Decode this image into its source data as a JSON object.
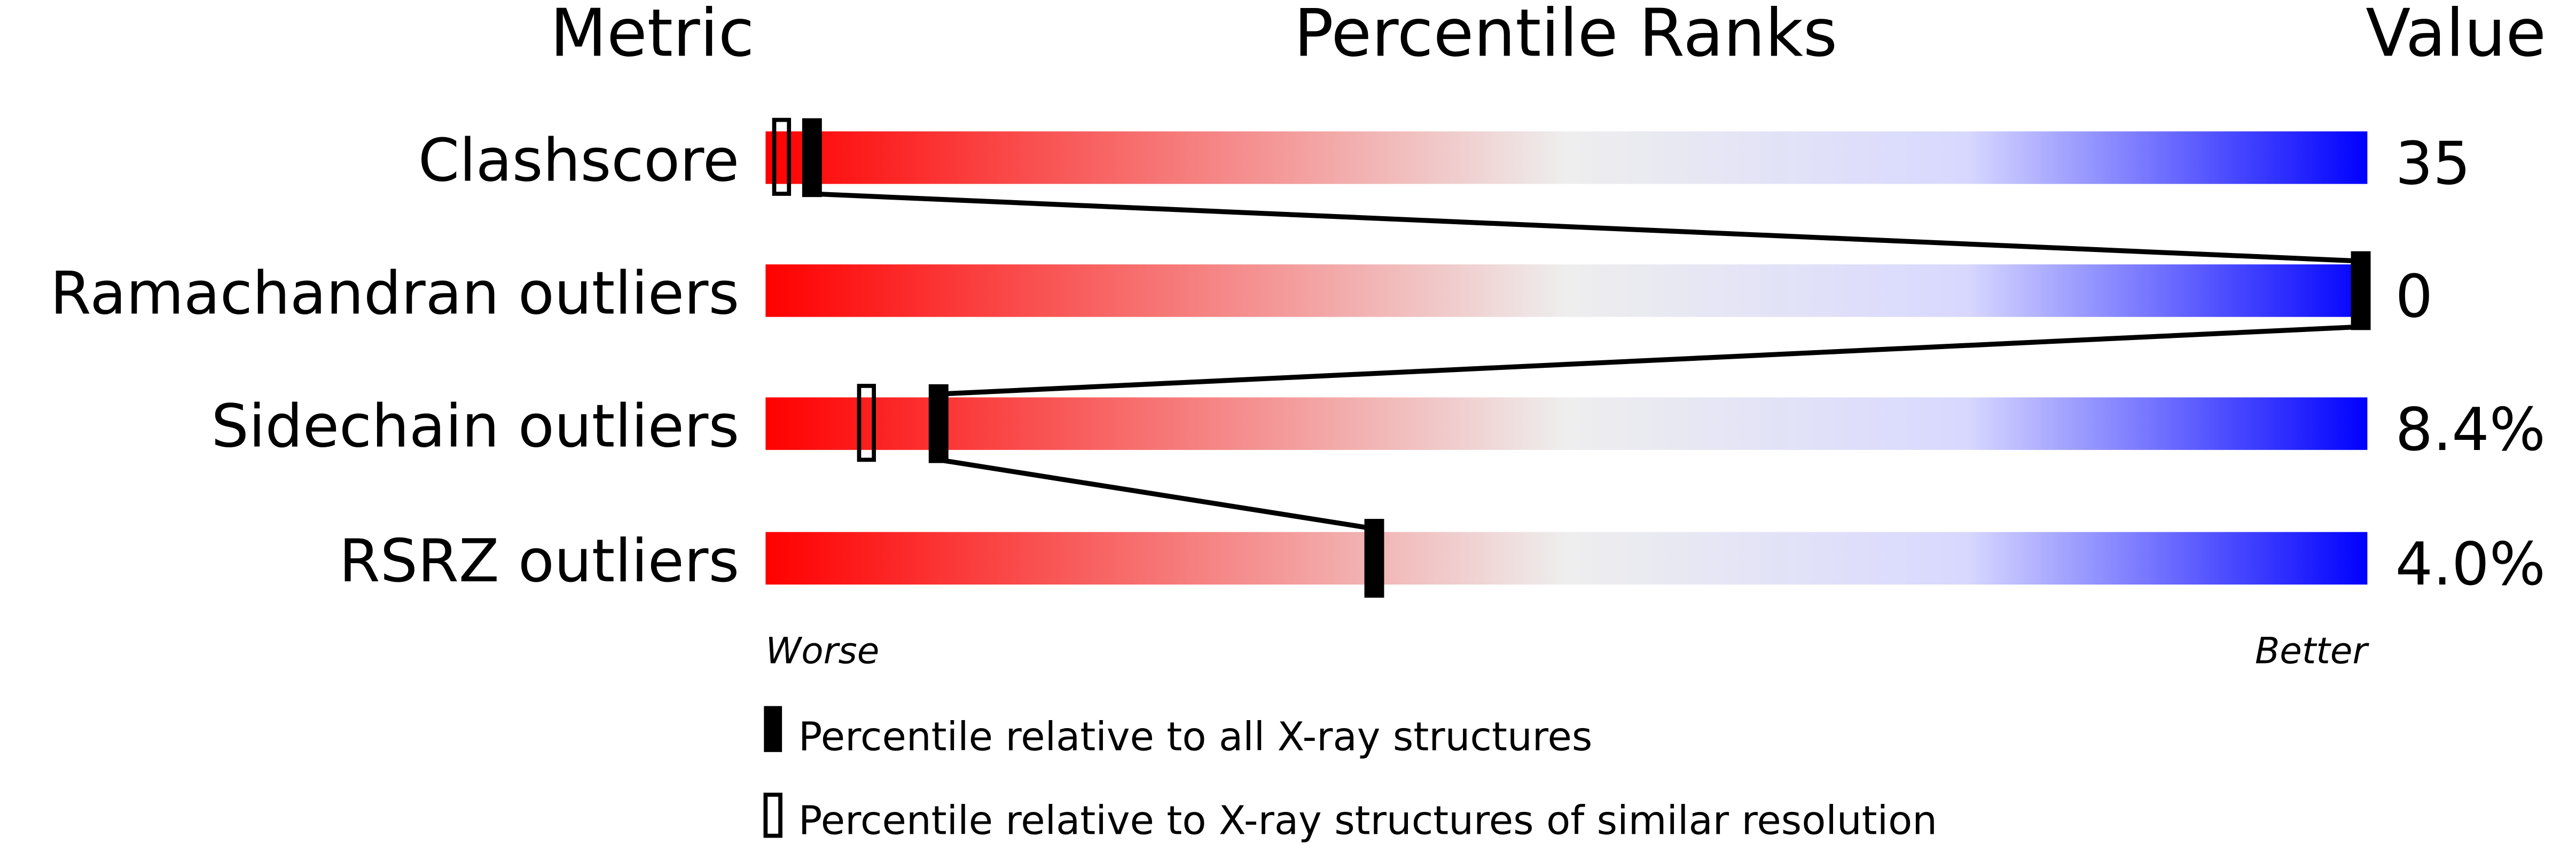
{
  "chart_data": {
    "type": "percentile-slider",
    "headers": {
      "metric": "Metric",
      "ranks": "Percentile Ranks",
      "value": "Value"
    },
    "xlim": [
      0,
      100
    ],
    "gradient_colors": {
      "worse": "#ff0000",
      "middle": "#eeeeee",
      "better": "#0000ff"
    },
    "axis_labels": {
      "worse": "Worse",
      "better": "Better"
    },
    "rows": [
      {
        "metric": "Clashscore",
        "value": "35",
        "percentile_all": 2.9,
        "percentile_similar": 1.0
      },
      {
        "metric": "Ramachandran outliers",
        "value": "0",
        "percentile_all": 100,
        "percentile_similar": null
      },
      {
        "metric": "Sidechain outliers",
        "value": "8.4%",
        "percentile_all": 10.8,
        "percentile_similar": 6.3
      },
      {
        "metric": "RSRZ outliers",
        "value": "4.0%",
        "percentile_all": 38.0,
        "percentile_similar": null
      }
    ],
    "legend": [
      {
        "marker": "filled",
        "label": "Percentile relative to all X-ray structures"
      },
      {
        "marker": "outline",
        "label": "Percentile relative to X-ray structures of similar resolution"
      }
    ]
  }
}
